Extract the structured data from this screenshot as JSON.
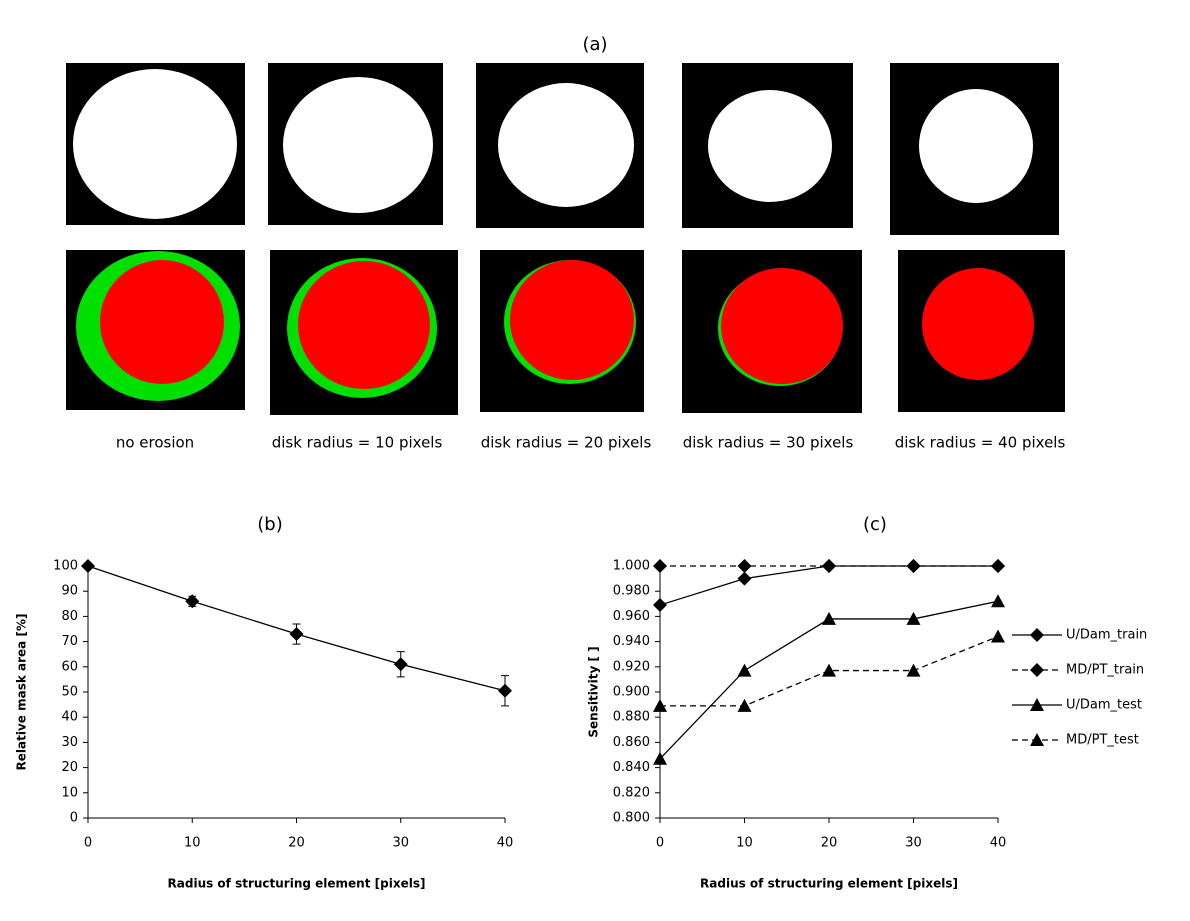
{
  "panel_a": {
    "label": "(a)",
    "captions": [
      "no erosion",
      "disk radius = 10 pixels",
      "disk radius = 20 pixels",
      "disk radius = 30 pixels",
      "disk radius = 40 pixels"
    ]
  },
  "chart_data": [
    {
      "type": "line",
      "title": "(b)",
      "x": [
        0,
        10,
        20,
        30,
        40
      ],
      "xlim": [
        0,
        40
      ],
      "xticks": [
        0,
        10,
        20,
        30,
        40
      ],
      "ylim": [
        0,
        100
      ],
      "yticks": [
        0,
        10,
        20,
        30,
        40,
        50,
        60,
        70,
        80,
        90,
        100
      ],
      "xlabel": "Radius of structuring element [pixels]",
      "ylabel": "Relative mask area [%]",
      "series": [
        {
          "values": [
            100,
            86,
            73,
            61,
            50.5
          ],
          "errors": [
            0,
            2,
            4,
            5,
            6
          ],
          "color": "#000000",
          "marker": "diamond",
          "dashed": false
        }
      ]
    },
    {
      "type": "line",
      "title": "(c)",
      "x": [
        0,
        10,
        20,
        30,
        40
      ],
      "xlim": [
        0,
        40
      ],
      "xticks": [
        0,
        10,
        20,
        30,
        40
      ],
      "ylim": [
        0.8,
        1.0
      ],
      "yticks": [
        {
          "value": 0.8,
          "label": "0.800"
        },
        {
          "value": 0.82,
          "label": "0.820"
        },
        {
          "value": 0.84,
          "label": "0.840"
        },
        {
          "value": 0.86,
          "label": "0.860"
        },
        {
          "value": 0.88,
          "label": "0.880"
        },
        {
          "value": 0.9,
          "label": "0.900"
        },
        {
          "value": 0.92,
          "label": "0.920"
        },
        {
          "value": 0.94,
          "label": "0.940"
        },
        {
          "value": 0.96,
          "label": "0.960"
        },
        {
          "value": 0.98,
          "label": "0.980"
        },
        {
          "value": 1.0,
          "label": "1.000"
        }
      ],
      "xlabel": "Radius of structuring element [pixels]",
      "ylabel": "Sensitivity [ ]",
      "legend": "right",
      "series": [
        {
          "name": "U/Dam_train",
          "values": [
            0.969,
            0.99,
            1.0,
            1.0,
            1.0
          ],
          "color": "#000000",
          "marker": "diamond",
          "dashed": false
        },
        {
          "name": "MD/PT_train",
          "values": [
            1.0,
            1.0,
            1.0,
            1.0,
            1.0
          ],
          "color": "#000000",
          "marker": "diamond",
          "dashed": true
        },
        {
          "name": "U/Dam_test",
          "values": [
            0.847,
            0.917,
            0.958,
            0.958,
            0.972
          ],
          "color": "#000000",
          "marker": "triangle",
          "dashed": false
        },
        {
          "name": "MD/PT_test",
          "values": [
            0.889,
            0.889,
            0.917,
            0.917,
            0.944
          ],
          "color": "#000000",
          "marker": "triangle",
          "dashed": true
        }
      ]
    }
  ]
}
